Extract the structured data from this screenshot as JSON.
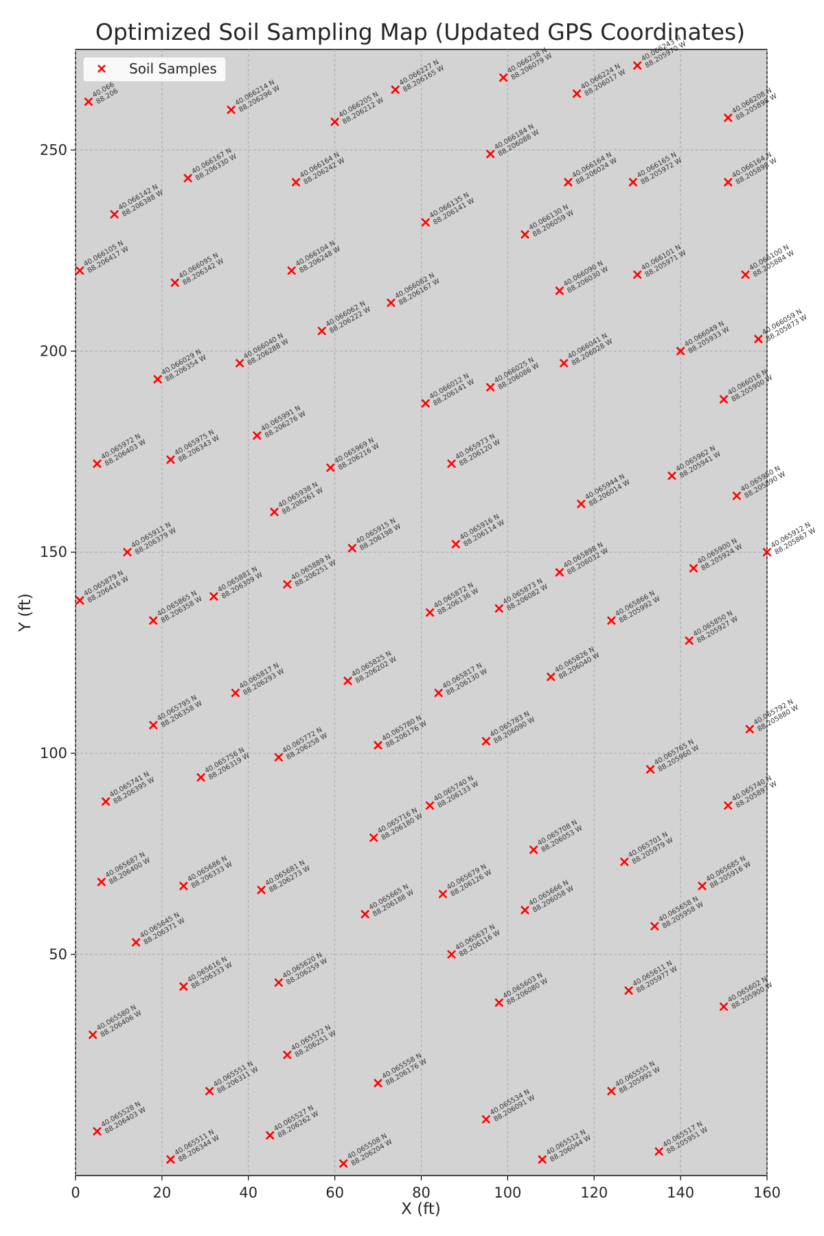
{
  "chart_data": {
    "type": "scatter",
    "title": "Optimized Soil Sampling Map (Updated GPS Coordinates)",
    "xlabel": "X (ft)",
    "ylabel": "Y (ft)",
    "xlim": [
      0,
      160
    ],
    "ylim": [
      -5,
      275
    ],
    "xticks": [
      0,
      20,
      40,
      60,
      80,
      100,
      120,
      140,
      160
    ],
    "yticks": [
      50,
      100,
      150,
      200,
      250
    ],
    "grid": true,
    "legend_position": "top-left",
    "series": [
      {
        "name": "Soil Samples",
        "marker": "x",
        "color": "#ff0000",
        "points": [
          {
            "x": 1,
            "y": 220,
            "lat": "40.066105 N",
            "lon": "88.206417 W"
          },
          {
            "x": 9,
            "y": 234,
            "lat": "40.066142 N",
            "lon": "88.206388 W"
          },
          {
            "x": 3,
            "y": 262,
            "lat": "40.066",
            "lon": "88.206"
          },
          {
            "x": 36,
            "y": 260,
            "lat": "40.066214 N",
            "lon": "88.206296 W"
          },
          {
            "x": 26,
            "y": 243,
            "lat": "40.066167 N",
            "lon": "88.206330 W"
          },
          {
            "x": 23,
            "y": 217,
            "lat": "40.066095 N",
            "lon": "88.206342 W"
          },
          {
            "x": 60,
            "y": 257,
            "lat": "40.066205 N",
            "lon": "88.206212 W"
          },
          {
            "x": 51,
            "y": 242,
            "lat": "40.066164 N",
            "lon": "88.206242 W"
          },
          {
            "x": 50,
            "y": 220,
            "lat": "40.066104 N",
            "lon": "88.206248 W"
          },
          {
            "x": 74,
            "y": 265,
            "lat": "40.066227 N",
            "lon": "88.206165 W"
          },
          {
            "x": 81,
            "y": 232,
            "lat": "40.066135 N",
            "lon": "88.206141 W"
          },
          {
            "x": 73,
            "y": 212,
            "lat": "40.066082 N",
            "lon": "88.206167 W"
          },
          {
            "x": 99,
            "y": 268,
            "lat": "40.066238 N",
            "lon": "88.206079 W"
          },
          {
            "x": 96,
            "y": 249,
            "lat": "40.066184 N",
            "lon": "88.206088 W"
          },
          {
            "x": 104,
            "y": 229,
            "lat": "40.066130 N",
            "lon": "88.206059 W"
          },
          {
            "x": 116,
            "y": 264,
            "lat": "40.066224 N",
            "lon": "88.206017 W"
          },
          {
            "x": 114,
            "y": 242,
            "lat": "40.066164 N",
            "lon": "88.206024 W"
          },
          {
            "x": 112,
            "y": 215,
            "lat": "40.066090 N",
            "lon": "88.206030 W"
          },
          {
            "x": 130,
            "y": 271,
            "lat": "40.066243 N",
            "lon": "88.205970 W"
          },
          {
            "x": 129,
            "y": 242,
            "lat": "40.066165 N",
            "lon": "88.205972 W"
          },
          {
            "x": 130,
            "y": 219,
            "lat": "40.066101 N",
            "lon": "88.205971 W"
          },
          {
            "x": 151,
            "y": 258,
            "lat": "40.066208 N",
            "lon": "88.205898 W"
          },
          {
            "x": 151,
            "y": 242,
            "lat": "40.066164 N",
            "lon": "88.205898 W"
          },
          {
            "x": 155,
            "y": 219,
            "lat": "40.066100 N",
            "lon": "88.205884 W"
          },
          {
            "x": 158,
            "y": 203,
            "lat": "40.066059 N",
            "lon": "88.205873 W"
          },
          {
            "x": 140,
            "y": 200,
            "lat": "40.066049 N",
            "lon": "88.205933 W"
          },
          {
            "x": 150,
            "y": 188,
            "lat": "40.066016 N",
            "lon": "88.205900 W"
          },
          {
            "x": 113,
            "y": 197,
            "lat": "40.066041 N",
            "lon": "88.206028 W"
          },
          {
            "x": 96,
            "y": 191,
            "lat": "40.066025 N",
            "lon": "88.206086 W"
          },
          {
            "x": 81,
            "y": 187,
            "lat": "40.066012 N",
            "lon": "88.206141 W"
          },
          {
            "x": 57,
            "y": 205,
            "lat": "40.066062 N",
            "lon": "88.206222 W"
          },
          {
            "x": 38,
            "y": 197,
            "lat": "40.066040 N",
            "lon": "88.206288 W"
          },
          {
            "x": 19,
            "y": 193,
            "lat": "40.066029 N",
            "lon": "88.206354 W"
          },
          {
            "x": 5,
            "y": 172,
            "lat": "40.065972 N",
            "lon": "88.206403 W"
          },
          {
            "x": 22,
            "y": 173,
            "lat": "40.065975 N",
            "lon": "88.206343 W"
          },
          {
            "x": 42,
            "y": 179,
            "lat": "40.065991 N",
            "lon": "88.206276 W"
          },
          {
            "x": 59,
            "y": 171,
            "lat": "40.065969 N",
            "lon": "88.206216 W"
          },
          {
            "x": 87,
            "y": 172,
            "lat": "40.065973 N",
            "lon": "88.206120 W"
          },
          {
            "x": 46,
            "y": 160,
            "lat": "40.065938 N",
            "lon": "88.206261 W"
          },
          {
            "x": 117,
            "y": 162,
            "lat": "40.065944 N",
            "lon": "88.206014 W"
          },
          {
            "x": 138,
            "y": 169,
            "lat": "40.065962 N",
            "lon": "88.205941 W"
          },
          {
            "x": 153,
            "y": 164,
            "lat": "40.065950 N",
            "lon": "88.205890 W"
          },
          {
            "x": 12,
            "y": 150,
            "lat": "40.065911 N",
            "lon": "88.206379 W"
          },
          {
            "x": 64,
            "y": 151,
            "lat": "40.065915 N",
            "lon": "88.206198 W"
          },
          {
            "x": 88,
            "y": 152,
            "lat": "40.065916 N",
            "lon": "88.206114 W"
          },
          {
            "x": 160,
            "y": 150,
            "lat": "40.065912 N",
            "lon": "88.205867 W"
          },
          {
            "x": 1,
            "y": 138,
            "lat": "40.065879 N",
            "lon": "88.206416 W"
          },
          {
            "x": 18,
            "y": 133,
            "lat": "40.065865 N",
            "lon": "88.206358 W"
          },
          {
            "x": 32,
            "y": 139,
            "lat": "40.065881 N",
            "lon": "88.206309 W"
          },
          {
            "x": 49,
            "y": 142,
            "lat": "40.065889 N",
            "lon": "88.206251 W"
          },
          {
            "x": 82,
            "y": 135,
            "lat": "40.065872 N",
            "lon": "88.206136 W"
          },
          {
            "x": 98,
            "y": 136,
            "lat": "40.065873 N",
            "lon": "88.206082 W"
          },
          {
            "x": 112,
            "y": 145,
            "lat": "40.065898 N",
            "lon": "88.206032 W"
          },
          {
            "x": 124,
            "y": 133,
            "lat": "40.065866 N",
            "lon": "88.205992 W"
          },
          {
            "x": 143,
            "y": 146,
            "lat": "40.065900 N",
            "lon": "88.205924 W"
          },
          {
            "x": 142,
            "y": 128,
            "lat": "40.065850 N",
            "lon": "88.205927 W"
          },
          {
            "x": 37,
            "y": 115,
            "lat": "40.065817 N",
            "lon": "88.206293 W"
          },
          {
            "x": 63,
            "y": 118,
            "lat": "40.065825 N",
            "lon": "88.206202 W"
          },
          {
            "x": 84,
            "y": 115,
            "lat": "40.065817 N",
            "lon": "88.206130 W"
          },
          {
            "x": 110,
            "y": 119,
            "lat": "40.065826 N",
            "lon": "88.206040 W"
          },
          {
            "x": 18,
            "y": 107,
            "lat": "40.065795 N",
            "lon": "88.206358 W"
          },
          {
            "x": 70,
            "y": 102,
            "lat": "40.065780 N",
            "lon": "88.206176 W"
          },
          {
            "x": 95,
            "y": 103,
            "lat": "40.065783 N",
            "lon": "88.206090 W"
          },
          {
            "x": 156,
            "y": 106,
            "lat": "40.065792 N",
            "lon": "88.205880 W"
          },
          {
            "x": 29,
            "y": 94,
            "lat": "40.065756 N",
            "lon": "88.206319 W"
          },
          {
            "x": 47,
            "y": 99,
            "lat": "40.065772 N",
            "lon": "88.206258 W"
          },
          {
            "x": 133,
            "y": 96,
            "lat": "40.065765 N",
            "lon": "88.205960 W"
          },
          {
            "x": 7,
            "y": 88,
            "lat": "40.065741 N",
            "lon": "88.206395 W"
          },
          {
            "x": 82,
            "y": 87,
            "lat": "40.065740 N",
            "lon": "88.206133 W"
          },
          {
            "x": 151,
            "y": 87,
            "lat": "40.065740 N",
            "lon": "88.205897 W"
          },
          {
            "x": 69,
            "y": 79,
            "lat": "40.065716 N",
            "lon": "88.206180 W"
          },
          {
            "x": 106,
            "y": 76,
            "lat": "40.065708 N",
            "lon": "88.206053 W"
          },
          {
            "x": 127,
            "y": 73,
            "lat": "40.065701 N",
            "lon": "88.205979 W"
          },
          {
            "x": 6,
            "y": 68,
            "lat": "40.065687 N",
            "lon": "88.206400 W"
          },
          {
            "x": 25,
            "y": 67,
            "lat": "40.065686 N",
            "lon": "88.206333 W"
          },
          {
            "x": 43,
            "y": 66,
            "lat": "40.065681 N",
            "lon": "88.206273 W"
          },
          {
            "x": 85,
            "y": 65,
            "lat": "40.065679 N",
            "lon": "88.206126 W"
          },
          {
            "x": 67,
            "y": 60,
            "lat": "40.065665 N",
            "lon": "88.206188 W"
          },
          {
            "x": 104,
            "y": 61,
            "lat": "40.065666 N",
            "lon": "88.206058 W"
          },
          {
            "x": 145,
            "y": 67,
            "lat": "40.065685 N",
            "lon": "88.205916 W"
          },
          {
            "x": 134,
            "y": 57,
            "lat": "40.065658 N",
            "lon": "88.205958 W"
          },
          {
            "x": 14,
            "y": 53,
            "lat": "40.065645 N",
            "lon": "88.206371 W"
          },
          {
            "x": 87,
            "y": 50,
            "lat": "40.065637 N",
            "lon": "88.206116 W"
          },
          {
            "x": 25,
            "y": 42,
            "lat": "40.065616 N",
            "lon": "88.206333 W"
          },
          {
            "x": 47,
            "y": 43,
            "lat": "40.065620 N",
            "lon": "88.206259 W"
          },
          {
            "x": 98,
            "y": 38,
            "lat": "40.065603 N",
            "lon": "88.206080 W"
          },
          {
            "x": 128,
            "y": 41,
            "lat": "40.065611 N",
            "lon": "88.205977 W"
          },
          {
            "x": 150,
            "y": 37,
            "lat": "40.065602 N",
            "lon": "88.205900 W"
          },
          {
            "x": 4,
            "y": 30,
            "lat": "40.065580 N",
            "lon": "88.206406 W"
          },
          {
            "x": 49,
            "y": 25,
            "lat": "40.065572 N",
            "lon": "88.206251 W"
          },
          {
            "x": 70,
            "y": 18,
            "lat": "40.065558 N",
            "lon": "88.206176 W"
          },
          {
            "x": 31,
            "y": 16,
            "lat": "40.065551 N",
            "lon": "88.206311 W"
          },
          {
            "x": 124,
            "y": 16,
            "lat": "40.065555 N",
            "lon": "88.205992 W"
          },
          {
            "x": 95,
            "y": 9,
            "lat": "40.065534 N",
            "lon": "88.206091 W"
          },
          {
            "x": 5,
            "y": 6,
            "lat": "40.065528 N",
            "lon": "88.206403 W"
          },
          {
            "x": 45,
            "y": 5,
            "lat": "40.065527 N",
            "lon": "88.206262 W"
          },
          {
            "x": 22,
            "y": -1,
            "lat": "40.065511 N",
            "lon": "88.206344 W"
          },
          {
            "x": 62,
            "y": -2,
            "lat": "40.065508 N",
            "lon": "88.206204 W"
          },
          {
            "x": 108,
            "y": -1,
            "lat": "40.065512 N",
            "lon": "88.206044 W"
          },
          {
            "x": 135,
            "y": 1,
            "lat": "40.065517 N",
            "lon": "88.205951 W"
          }
        ]
      }
    ]
  }
}
